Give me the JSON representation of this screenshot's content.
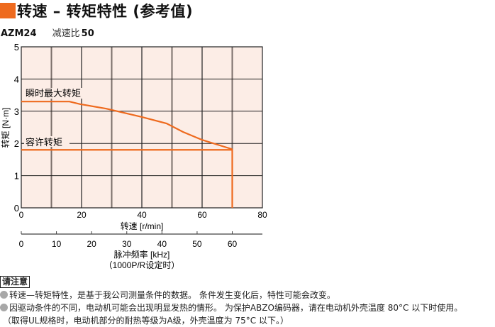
{
  "title": "转速 – 转矩特性 (参考值)",
  "model": "AZM24",
  "ratio_label": "减速比",
  "ratio_value": "50",
  "notes": {
    "heading": "请注意",
    "items": [
      "转速—转矩特性，是基于我公司测量条件的数据。 条件发生变化后，特性可能会改变。",
      "因驱动条件的不同，电动机可能会出现明显发热的情形。 为保护ABZO编码器，请在电动机外壳温度 80°C 以下时使用。"
    ],
    "sub": "（取得UL规格时，电动机部分的耐热等级为A级，外壳温度为 75°C 以下。）"
  },
  "colors": {
    "accent": "#ee6a1e",
    "plot_bg": "#fcede6",
    "grid_dark": "#222222",
    "grid_gray": "#7a6e6a"
  },
  "chart_data": {
    "type": "line",
    "xlabel": "转速 [r/min]",
    "ylabel": "转矩 [N·m]",
    "xlim": [
      0,
      80
    ],
    "ylim": [
      0,
      5
    ],
    "xticks": [
      0,
      20,
      40,
      60,
      80
    ],
    "yticks": [
      0,
      1,
      2,
      3,
      4,
      5
    ],
    "grid": true,
    "secondary_x": {
      "label": "脉冲频率 [kHz]",
      "label2": "（1000P/R设定时）",
      "ticks": [
        0,
        10,
        20,
        30,
        40,
        50,
        60
      ],
      "kHz_per_rmin": 0.8571
    },
    "series": [
      {
        "name": "瞬时最大转矩",
        "x": [
          0,
          16,
          19.5,
          28.2,
          40,
          48.2,
          53.6,
          60,
          70
        ],
        "y": [
          3.3,
          3.3,
          3.22,
          3.08,
          2.82,
          2.62,
          2.36,
          2.11,
          1.82
        ]
      },
      {
        "name": "容许转矩",
        "x": [
          0,
          70,
          70
        ],
        "y": [
          1.8,
          1.8,
          0
        ]
      }
    ]
  }
}
